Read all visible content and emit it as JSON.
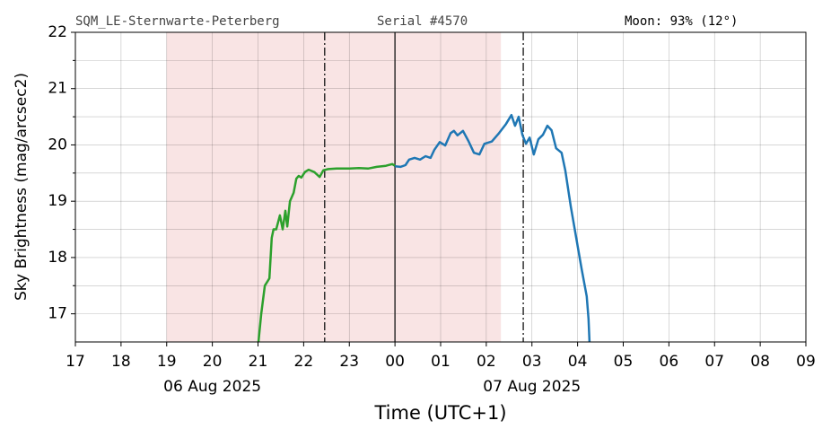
{
  "chart_data": {
    "type": "line",
    "header_left": "SQM_LE-Sternwarte-Peterberg",
    "header_center": "Serial #4570",
    "header_right": "Moon: 93% (12°)",
    "xlabel": "Time (UTC+1)",
    "ylabel": "Sky Brightness (mag/arcsec2)",
    "xlim": [
      17,
      33
    ],
    "xticks": [
      17,
      18,
      19,
      20,
      21,
      22,
      23,
      {
        "value": 24,
        "label": "00"
      },
      {
        "value": 25,
        "label": "01"
      },
      {
        "value": 26,
        "label": "02"
      },
      {
        "value": 27,
        "label": "03"
      },
      {
        "value": 28,
        "label": "04"
      },
      {
        "value": 29,
        "label": "05"
      },
      {
        "value": 30,
        "label": "06"
      },
      {
        "value": 31,
        "label": "07"
      },
      {
        "value": 32,
        "label": "08"
      },
      {
        "value": 33,
        "label": "09"
      }
    ],
    "ylim": [
      16.5,
      22
    ],
    "yticks": [
      17,
      18,
      19,
      20,
      21,
      22
    ],
    "yminorticks": [
      17.5,
      18.5,
      19.5,
      20.5,
      21.5
    ],
    "grid": true,
    "annotations": [
      {
        "text": "06 Aug 2025",
        "x": 20
      },
      {
        "text": "07 Aug 2025",
        "x": 27
      }
    ],
    "night_span": {
      "start": 19,
      "end": 26.32,
      "color": "#f9e4e4"
    },
    "vlines": [
      {
        "x": 22.46,
        "style": "dashdot"
      },
      {
        "x": 24,
        "style": "solid"
      },
      {
        "x": 26.81,
        "style": "dashdot"
      }
    ],
    "series": [
      {
        "color": "#2ca02c",
        "x": [
          21.01,
          21.07,
          21.15,
          21.25,
          21.3,
          21.34,
          21.4,
          21.48,
          21.54,
          21.6,
          21.64,
          21.7,
          21.78,
          21.84,
          21.89,
          21.95,
          22.03,
          22.11,
          22.23,
          22.35,
          22.43,
          22.54,
          22.72,
          23.01,
          23.21,
          23.41,
          23.6,
          23.8,
          23.94,
          24.0
        ],
        "values": [
          16.5,
          17.0,
          17.5,
          17.63,
          18.35,
          18.5,
          18.5,
          18.75,
          18.5,
          18.83,
          18.55,
          19.0,
          19.15,
          19.4,
          19.45,
          19.42,
          19.52,
          19.56,
          19.52,
          19.43,
          19.55,
          19.57,
          19.58,
          19.58,
          19.59,
          19.58,
          19.61,
          19.63,
          19.66,
          19.63
        ]
      },
      {
        "color": "#1f77b4",
        "x": [
          24.0,
          24.12,
          24.23,
          24.31,
          24.43,
          24.55,
          24.67,
          24.78,
          24.86,
          24.98,
          25.1,
          25.22,
          25.29,
          25.37,
          25.49,
          25.61,
          25.73,
          25.85,
          25.96,
          26.12,
          26.28,
          26.43,
          26.55,
          26.63,
          26.71,
          26.79,
          26.87,
          26.95,
          27.04,
          27.14,
          27.24,
          27.34,
          27.43,
          27.53,
          27.65,
          27.73,
          27.85,
          27.97,
          28.09,
          28.2,
          28.24,
          28.26
        ],
        "values": [
          19.62,
          19.61,
          19.64,
          19.74,
          19.77,
          19.74,
          19.8,
          19.77,
          19.91,
          20.05,
          19.99,
          20.21,
          20.25,
          20.17,
          20.25,
          20.07,
          19.86,
          19.83,
          20.02,
          20.06,
          20.21,
          20.37,
          20.53,
          20.34,
          20.5,
          20.18,
          20.02,
          20.13,
          19.83,
          20.1,
          20.18,
          20.34,
          20.26,
          19.94,
          19.86,
          19.55,
          18.91,
          18.35,
          17.79,
          17.31,
          16.91,
          16.5
        ]
      }
    ]
  }
}
